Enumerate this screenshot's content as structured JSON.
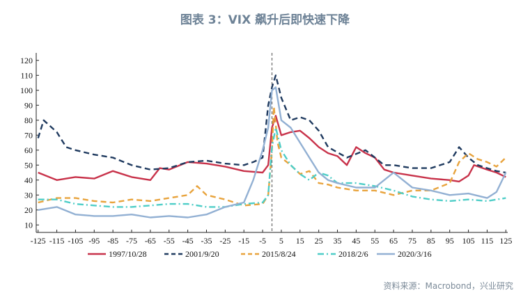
{
  "title": "图表 3：VIX 飙升后即快速下降",
  "source": "资料来源：Macrobond，兴业研究",
  "chart_data": {
    "type": "line",
    "title": "图表 3：VIX 飙升后即快速下降",
    "xlabel": "",
    "ylabel": "",
    "xlim": [
      -126,
      126
    ],
    "ylim": [
      5,
      125
    ],
    "x_ticks": [
      -125,
      -115,
      -105,
      -95,
      -85,
      -75,
      -65,
      -55,
      -45,
      -35,
      -25,
      -15,
      -5,
      5,
      15,
      25,
      35,
      45,
      55,
      65,
      75,
      85,
      95,
      105,
      115,
      125
    ],
    "y_ticks": [
      10,
      20,
      30,
      40,
      50,
      60,
      70,
      80,
      90,
      100,
      110,
      120
    ],
    "event_line_x": 0,
    "grid": false,
    "legend_position": "bottom",
    "series": [
      {
        "name": "1997/10/28",
        "color": "#c8324a",
        "dash": "solid",
        "points": [
          [
            -125,
            45
          ],
          [
            -115,
            40
          ],
          [
            -105,
            42
          ],
          [
            -95,
            41
          ],
          [
            -85,
            46
          ],
          [
            -75,
            42
          ],
          [
            -65,
            40
          ],
          [
            -60,
            48
          ],
          [
            -55,
            47
          ],
          [
            -45,
            52
          ],
          [
            -35,
            51
          ],
          [
            -25,
            49
          ],
          [
            -15,
            46
          ],
          [
            -5,
            45
          ],
          [
            -2,
            50
          ],
          [
            0,
            75
          ],
          [
            2,
            83
          ],
          [
            5,
            70
          ],
          [
            10,
            72
          ],
          [
            15,
            73
          ],
          [
            20,
            68
          ],
          [
            25,
            62
          ],
          [
            30,
            58
          ],
          [
            35,
            56
          ],
          [
            40,
            50
          ],
          [
            45,
            62
          ],
          [
            50,
            58
          ],
          [
            55,
            55
          ],
          [
            60,
            47
          ],
          [
            65,
            45
          ],
          [
            75,
            43
          ],
          [
            85,
            41
          ],
          [
            95,
            40
          ],
          [
            100,
            39
          ],
          [
            105,
            43
          ],
          [
            108,
            50
          ],
          [
            115,
            47
          ],
          [
            120,
            45
          ],
          [
            125,
            42
          ]
        ]
      },
      {
        "name": "2001/9/20",
        "color": "#1f3a5f",
        "dash": "dash",
        "points": [
          [
            -125,
            68
          ],
          [
            -122,
            80
          ],
          [
            -115,
            72
          ],
          [
            -110,
            62
          ],
          [
            -105,
            60
          ],
          [
            -95,
            57
          ],
          [
            -85,
            55
          ],
          [
            -75,
            50
          ],
          [
            -65,
            47
          ],
          [
            -55,
            48
          ],
          [
            -45,
            52
          ],
          [
            -35,
            53
          ],
          [
            -25,
            51
          ],
          [
            -15,
            50
          ],
          [
            -10,
            52
          ],
          [
            -5,
            55
          ],
          [
            -2,
            90
          ],
          [
            0,
            102
          ],
          [
            2,
            110
          ],
          [
            5,
            95
          ],
          [
            10,
            80
          ],
          [
            15,
            82
          ],
          [
            20,
            80
          ],
          [
            25,
            73
          ],
          [
            30,
            62
          ],
          [
            40,
            55
          ],
          [
            50,
            60
          ],
          [
            55,
            55
          ],
          [
            60,
            50
          ],
          [
            65,
            50
          ],
          [
            75,
            48
          ],
          [
            85,
            48
          ],
          [
            95,
            52
          ],
          [
            100,
            62
          ],
          [
            105,
            55
          ],
          [
            110,
            50
          ],
          [
            115,
            48
          ],
          [
            120,
            46
          ],
          [
            125,
            45
          ]
        ]
      },
      {
        "name": "2015/8/24",
        "color": "#e8a33c",
        "dash": "dash",
        "points": [
          [
            -125,
            25
          ],
          [
            -115,
            28
          ],
          [
            -105,
            28
          ],
          [
            -95,
            26
          ],
          [
            -85,
            25
          ],
          [
            -75,
            27
          ],
          [
            -65,
            26
          ],
          [
            -55,
            28
          ],
          [
            -45,
            30
          ],
          [
            -40,
            36
          ],
          [
            -35,
            30
          ],
          [
            -25,
            27
          ],
          [
            -15,
            23
          ],
          [
            -5,
            24
          ],
          [
            -2,
            30
          ],
          [
            0,
            60
          ],
          [
            1,
            89
          ],
          [
            3,
            65
          ],
          [
            5,
            55
          ],
          [
            10,
            50
          ],
          [
            15,
            44
          ],
          [
            20,
            46
          ],
          [
            25,
            38
          ],
          [
            30,
            37
          ],
          [
            35,
            35
          ],
          [
            45,
            33
          ],
          [
            55,
            33
          ],
          [
            65,
            30
          ],
          [
            75,
            33
          ],
          [
            85,
            33
          ],
          [
            95,
            38
          ],
          [
            100,
            52
          ],
          [
            105,
            58
          ],
          [
            110,
            54
          ],
          [
            115,
            52
          ],
          [
            120,
            49
          ],
          [
            125,
            55
          ]
        ]
      },
      {
        "name": "2018/2/6",
        "color": "#4ecdc7",
        "dash": "dashdot",
        "points": [
          [
            -125,
            27
          ],
          [
            -115,
            27
          ],
          [
            -105,
            24
          ],
          [
            -95,
            23
          ],
          [
            -85,
            22
          ],
          [
            -75,
            22
          ],
          [
            -65,
            23
          ],
          [
            -55,
            24
          ],
          [
            -45,
            24
          ],
          [
            -35,
            22
          ],
          [
            -25,
            22
          ],
          [
            -15,
            24
          ],
          [
            -5,
            25
          ],
          [
            -2,
            30
          ],
          [
            0,
            62
          ],
          [
            2,
            75
          ],
          [
            5,
            60
          ],
          [
            10,
            50
          ],
          [
            15,
            44
          ],
          [
            20,
            40
          ],
          [
            25,
            45
          ],
          [
            30,
            43
          ],
          [
            35,
            38
          ],
          [
            45,
            38
          ],
          [
            55,
            36
          ],
          [
            65,
            33
          ],
          [
            75,
            29
          ],
          [
            85,
            27
          ],
          [
            95,
            26
          ],
          [
            105,
            27
          ],
          [
            115,
            26
          ],
          [
            125,
            28
          ]
        ]
      },
      {
        "name": "2020/3/16",
        "color": "#92b0d3",
        "dash": "solid",
        "points": [
          [
            -125,
            20
          ],
          [
            -115,
            22
          ],
          [
            -105,
            17
          ],
          [
            -95,
            16
          ],
          [
            -85,
            16
          ],
          [
            -75,
            17
          ],
          [
            -65,
            15
          ],
          [
            -55,
            16
          ],
          [
            -45,
            15
          ],
          [
            -35,
            17
          ],
          [
            -25,
            22
          ],
          [
            -15,
            25
          ],
          [
            -10,
            40
          ],
          [
            -5,
            60
          ],
          [
            -2,
            75
          ],
          [
            0,
            100
          ],
          [
            2,
            102
          ],
          [
            5,
            80
          ],
          [
            10,
            75
          ],
          [
            15,
            65
          ],
          [
            20,
            55
          ],
          [
            25,
            45
          ],
          [
            30,
            40
          ],
          [
            35,
            38
          ],
          [
            45,
            35
          ],
          [
            55,
            35
          ],
          [
            65,
            45
          ],
          [
            70,
            40
          ],
          [
            75,
            35
          ],
          [
            85,
            33
          ],
          [
            95,
            30
          ],
          [
            105,
            31
          ],
          [
            115,
            28
          ],
          [
            120,
            32
          ],
          [
            125,
            45
          ]
        ]
      }
    ]
  }
}
